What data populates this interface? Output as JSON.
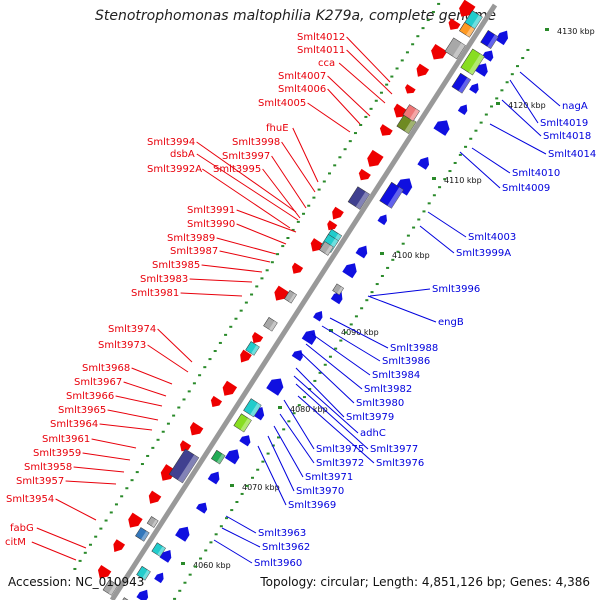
{
  "title": "Stenotrophomonas maltophilia K279a, complete genome",
  "accession": "Accession: NC_010943",
  "topology": "Topology: circular; Length: 4,851,126 bp; Genes: 4,386",
  "colors": {
    "minus_label": "#e8000b",
    "plus_label": "#0000dd",
    "backbone": "#999999"
  },
  "ticks": [
    "4060 kbp",
    "4070 kbp",
    "4080 kbp",
    "4090 kbp",
    "4100 kbp",
    "4110 kbp",
    "4120 kbp",
    "4130 kbp"
  ],
  "left_labels": [
    "Smlt4012",
    "Smlt4011",
    "cca",
    "Smlt4007",
    "Smlt4006",
    "Smlt4005",
    "fhuE",
    "Smlt3998",
    "Smlt3994",
    "dsbA",
    "Smlt3997",
    "Smlt3995",
    "Smlt3992A",
    "Smlt3991",
    "Smlt3990",
    "Smlt3989",
    "Smlt3987",
    "Smlt3985",
    "Smlt3983",
    "Smlt3981",
    "Smlt3974",
    "Smlt3973",
    "Smlt3968",
    "Smlt3967",
    "Smlt3966",
    "Smlt3965",
    "Smlt3964",
    "Smlt3961",
    "Smlt3959",
    "Smlt3958",
    "Smlt3957",
    "Smlt3954",
    "fabG",
    "citM"
  ],
  "right_labels": [
    "nagA",
    "Smlt4019",
    "Smlt4018",
    "Smlt4014",
    "Smlt4010",
    "Smlt4009",
    "Smlt4003",
    "Smlt3999A",
    "Smlt3996",
    "engB",
    "Smlt3988",
    "Smlt3986",
    "Smlt3984",
    "Smlt3982",
    "Smlt3980",
    "Smlt3979",
    "adhC",
    "Smlt3977",
    "Smlt3975",
    "Smlt3976",
    "Smlt3972",
    "Smlt3971",
    "Smlt3970",
    "Smlt3969",
    "Smlt3963",
    "Smlt3962",
    "Smlt3960"
  ]
}
